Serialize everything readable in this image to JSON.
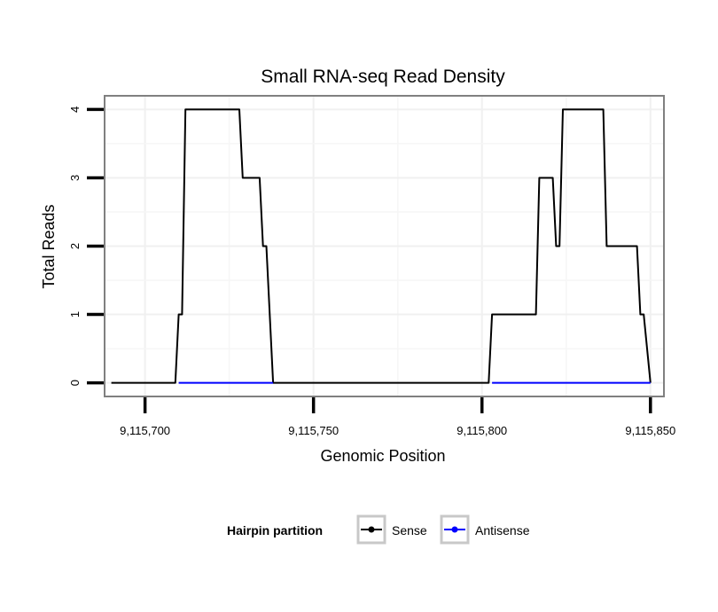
{
  "chart_data": {
    "type": "line",
    "title": "Small RNA-seq Read Density",
    "xlabel": "Genomic Position",
    "ylabel": "Total Reads",
    "xlim": [
      9115688,
      9115854
    ],
    "ylim": [
      -0.2,
      4.2
    ],
    "x_ticks": [
      9115700,
      9115750,
      9115800,
      9115850
    ],
    "x_tick_labels": [
      "9,115,700",
      "9,115,750",
      "9,115,800",
      "9,115,850"
    ],
    "y_ticks": [
      0,
      1,
      2,
      3,
      4
    ],
    "y_tick_labels": [
      "0",
      "1",
      "2",
      "3",
      "4"
    ],
    "grid": true,
    "legend": {
      "title": "Hairpin partition",
      "position": "bottom",
      "entries": [
        "Sense",
        "Antisense"
      ]
    },
    "series": [
      {
        "name": "Sense",
        "color": "#000000",
        "x": [
          9115690,
          9115709,
          9115710,
          9115711,
          9115712,
          9115728,
          9115729,
          9115734,
          9115735,
          9115736,
          9115738,
          9115802,
          9115803,
          9115816,
          9115817,
          9115821,
          9115822,
          9115823,
          9115824,
          9115836,
          9115837,
          9115846,
          9115847,
          9115848,
          9115850
        ],
        "values": [
          0,
          0,
          1,
          1,
          4,
          4,
          3,
          3,
          2,
          2,
          0,
          0,
          1,
          1,
          3,
          3,
          2,
          2,
          4,
          4,
          2,
          2,
          1,
          1,
          0
        ]
      },
      {
        "name": "Antisense",
        "color": "#0000ff",
        "x": [
          9115710,
          9115738,
          9115803,
          9115850
        ],
        "values": [
          0,
          0,
          0,
          0
        ],
        "segments": [
          [
            0,
            1
          ],
          [
            2,
            3
          ]
        ]
      }
    ]
  }
}
